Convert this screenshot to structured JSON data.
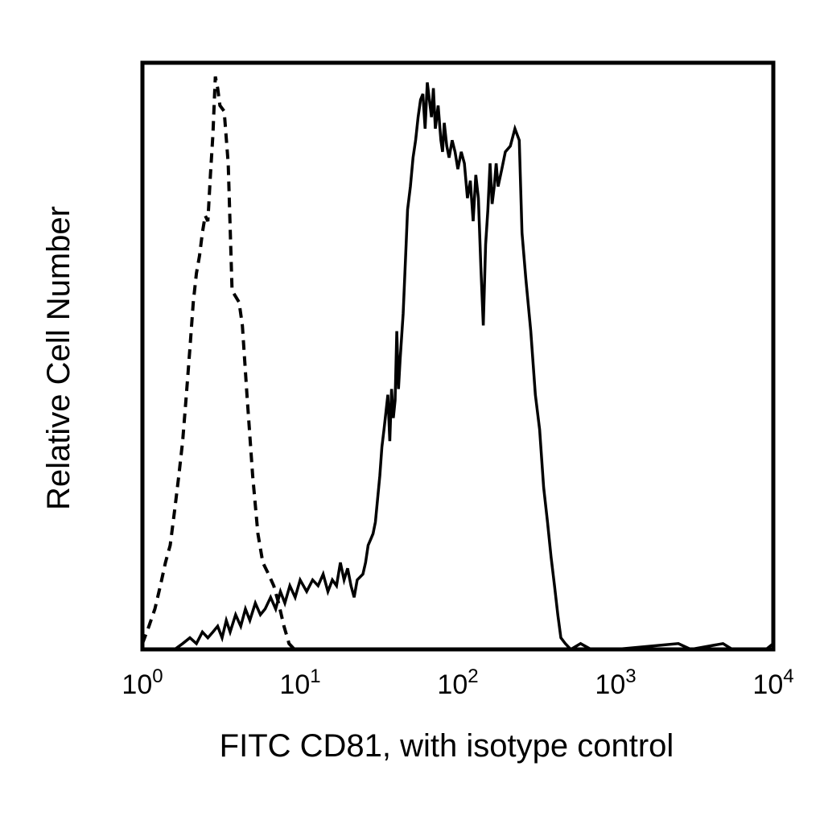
{
  "chart_data": {
    "type": "line",
    "xlabel": "FITC CD81, with isotype control",
    "ylabel": "Relative Cell Number",
    "x_scale": "log",
    "xlim": [
      1,
      10000
    ],
    "ylim": [
      0,
      100
    ],
    "grid": false,
    "x_ticks": [
      {
        "value": 1,
        "base": "10",
        "exp": "0"
      },
      {
        "value": 10,
        "base": "10",
        "exp": "1"
      },
      {
        "value": 100,
        "base": "10",
        "exp": "2"
      },
      {
        "value": 1000,
        "base": "10",
        "exp": "3"
      },
      {
        "value": 10000,
        "base": "10",
        "exp": "4"
      }
    ],
    "colors": {
      "axis": "#000000",
      "series": "#000000",
      "background": "#ffffff"
    },
    "series": [
      {
        "style": "solid",
        "points": [
          [
            1.0,
            0
          ],
          [
            1.3,
            0
          ],
          [
            1.6,
            0
          ],
          [
            1.8,
            1
          ],
          [
            2.0,
            2
          ],
          [
            2.2,
            1
          ],
          [
            2.4,
            3
          ],
          [
            2.6,
            2
          ],
          [
            2.8,
            3
          ],
          [
            3.0,
            4
          ],
          [
            3.2,
            2
          ],
          [
            3.4,
            5
          ],
          [
            3.6,
            3
          ],
          [
            3.9,
            6
          ],
          [
            4.2,
            4
          ],
          [
            4.5,
            7
          ],
          [
            4.8,
            5
          ],
          [
            5.2,
            8
          ],
          [
            5.6,
            6
          ],
          [
            6.0,
            7
          ],
          [
            6.5,
            9
          ],
          [
            7.0,
            7
          ],
          [
            7.5,
            10
          ],
          [
            8.0,
            8
          ],
          [
            8.6,
            11
          ],
          [
            9.3,
            9
          ],
          [
            10,
            12
          ],
          [
            11,
            10
          ],
          [
            12,
            12
          ],
          [
            13,
            11
          ],
          [
            14,
            13
          ],
          [
            15,
            10
          ],
          [
            16,
            12
          ],
          [
            17,
            11
          ],
          [
            18,
            15
          ],
          [
            19,
            12
          ],
          [
            20,
            14
          ],
          [
            21,
            11
          ],
          [
            22,
            9
          ],
          [
            23,
            12
          ],
          [
            25,
            13
          ],
          [
            26,
            15
          ],
          [
            27,
            18
          ],
          [
            28,
            19
          ],
          [
            29,
            20
          ],
          [
            30,
            22
          ],
          [
            32,
            30
          ],
          [
            33,
            35
          ],
          [
            34,
            38
          ],
          [
            36,
            44
          ],
          [
            37,
            36
          ],
          [
            38,
            45
          ],
          [
            39,
            40
          ],
          [
            40,
            43
          ],
          [
            41,
            55
          ],
          [
            42,
            45
          ],
          [
            43,
            50
          ],
          [
            45,
            58
          ],
          [
            47,
            70
          ],
          [
            48,
            76
          ],
          [
            50,
            80
          ],
          [
            52,
            85
          ],
          [
            54,
            88
          ],
          [
            56,
            92
          ],
          [
            58,
            95
          ],
          [
            60,
            96
          ],
          [
            62,
            90
          ],
          [
            64,
            98
          ],
          [
            66,
            95
          ],
          [
            68,
            92
          ],
          [
            70,
            97
          ],
          [
            72,
            90
          ],
          [
            75,
            94
          ],
          [
            78,
            88
          ],
          [
            80,
            86
          ],
          [
            82,
            91
          ],
          [
            85,
            87
          ],
          [
            88,
            85
          ],
          [
            92,
            88
          ],
          [
            96,
            86
          ],
          [
            100,
            83
          ],
          [
            105,
            86
          ],
          [
            110,
            84
          ],
          [
            115,
            78
          ],
          [
            120,
            81
          ],
          [
            125,
            74
          ],
          [
            130,
            82
          ],
          [
            135,
            78
          ],
          [
            140,
            66
          ],
          [
            145,
            56
          ],
          [
            150,
            70
          ],
          [
            155,
            76
          ],
          [
            160,
            84
          ],
          [
            165,
            77
          ],
          [
            170,
            80
          ],
          [
            175,
            84
          ],
          [
            180,
            80
          ],
          [
            190,
            83
          ],
          [
            200,
            86
          ],
          [
            215,
            87
          ],
          [
            230,
            90
          ],
          [
            245,
            88
          ],
          [
            255,
            72
          ],
          [
            270,
            64
          ],
          [
            290,
            55
          ],
          [
            310,
            44
          ],
          [
            330,
            38
          ],
          [
            350,
            28
          ],
          [
            370,
            22
          ],
          [
            390,
            16
          ],
          [
            410,
            11
          ],
          [
            430,
            6
          ],
          [
            450,
            2
          ],
          [
            480,
            1
          ],
          [
            520,
            0
          ],
          [
            600,
            1
          ],
          [
            700,
            0
          ],
          [
            1000,
            0
          ],
          [
            2500,
            1
          ],
          [
            3000,
            0
          ],
          [
            4800,
            1
          ],
          [
            5500,
            0
          ],
          [
            9000,
            0
          ],
          [
            10000,
            1
          ]
        ]
      },
      {
        "style": "dashed",
        "points": [
          [
            1.0,
            1
          ],
          [
            1.1,
            4
          ],
          [
            1.2,
            7
          ],
          [
            1.3,
            11
          ],
          [
            1.4,
            15
          ],
          [
            1.5,
            18
          ],
          [
            1.6,
            24
          ],
          [
            1.7,
            30
          ],
          [
            1.8,
            36
          ],
          [
            1.9,
            44
          ],
          [
            2.0,
            52
          ],
          [
            2.1,
            60
          ],
          [
            2.2,
            65
          ],
          [
            2.3,
            68
          ],
          [
            2.4,
            72
          ],
          [
            2.5,
            75
          ],
          [
            2.6,
            74
          ],
          [
            2.7,
            82
          ],
          [
            2.8,
            89
          ],
          [
            2.9,
            99
          ],
          [
            3.0,
            97
          ],
          [
            3.1,
            94
          ],
          [
            3.3,
            93
          ],
          [
            3.5,
            84
          ],
          [
            3.7,
            62
          ],
          [
            3.9,
            61
          ],
          [
            4.1,
            60
          ],
          [
            4.3,
            56
          ],
          [
            4.6,
            44
          ],
          [
            5.0,
            30
          ],
          [
            5.4,
            20
          ],
          [
            5.8,
            15
          ],
          [
            6.3,
            13
          ],
          [
            6.8,
            11
          ],
          [
            7.3,
            8
          ],
          [
            7.9,
            4
          ],
          [
            8.5,
            1
          ],
          [
            9.2,
            0
          ],
          [
            10,
            0
          ]
        ]
      }
    ]
  }
}
